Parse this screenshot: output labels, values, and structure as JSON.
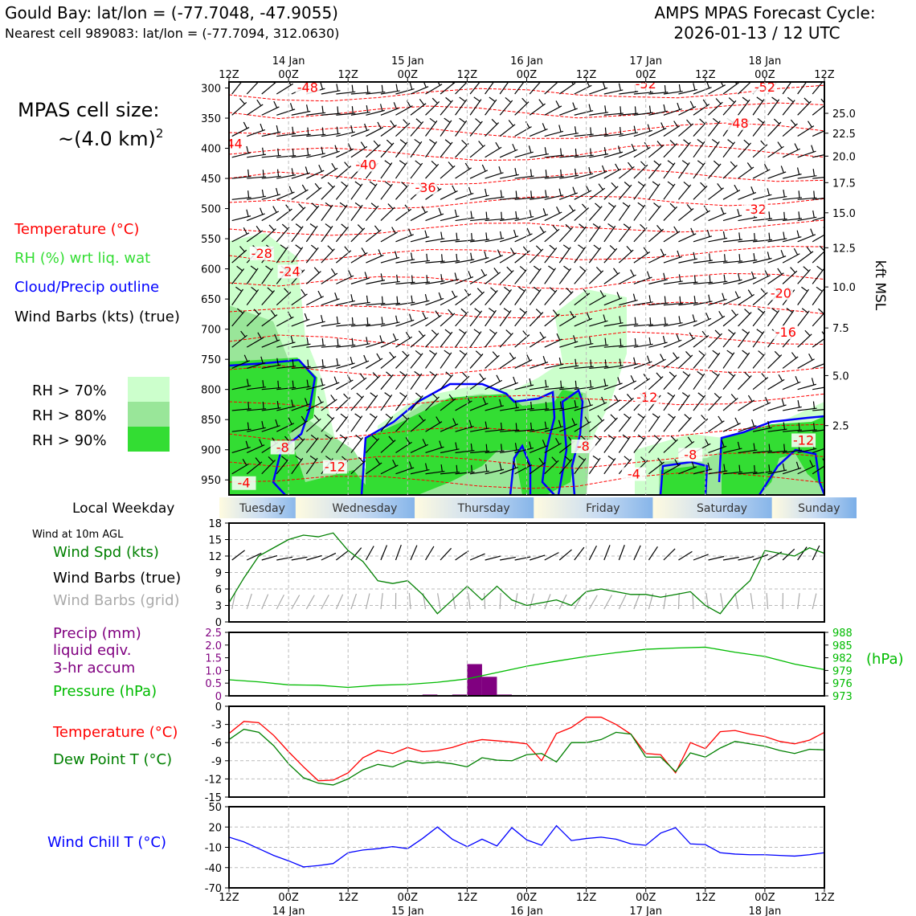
{
  "header": {
    "site_line": "Gould Bay: lat/lon = (-77.7048, -47.9055)",
    "cell_line": "Nearest cell 989083: lat/lon = (-77.7094, 312.0630)",
    "cycle_label": "AMPS MPAS Forecast Cycle:",
    "cycle_value": "2026-01-13 / 12 UTC"
  },
  "left_panel": {
    "cell_size_title": "MPAS cell size:",
    "cell_size_value": "~(4.0 km)",
    "cell_size_sup": "2",
    "legend": {
      "temperature": "Temperature (°C)",
      "rh": "RH (%) wrt liq. wat",
      "cloud": "Cloud/Precip outline",
      "barbs": "Wind Barbs (kts) (true)"
    },
    "rh_levels": [
      {
        "label": "RH > 70%",
        "color": "#ccffcc"
      },
      {
        "label": "RH > 80%",
        "color": "#99e699"
      },
      {
        "label": "RH > 90%",
        "color": "#33dd33"
      }
    ],
    "weekday_label": "Local Weekday",
    "wind_label": "Wind at 10m AGL",
    "wind_spd_label": "Wind Spd (kts)",
    "wind_true_label": "Wind Barbs (true)",
    "wind_grid_label": "Wind Barbs (grid)",
    "precip_label": [
      "Precip (mm)",
      "liquid eqiv.",
      "3-hr accum"
    ],
    "pressure_label": "Pressure (hPa)",
    "pressure_unit": "(hPa)",
    "temp_label": "Temperature (°C)",
    "dew_label": "Dew Point T (°C)",
    "chill_label": "Wind Chill T (°C)"
  },
  "colors": {
    "temperature": "#ff0000",
    "dewpoint": "#008000",
    "rh_legend": "#33cc33",
    "cloud": "#0000ff",
    "pressure": "#00bb00",
    "precip": "#800080",
    "windchill": "#0000ff",
    "wind_speed": "#008000",
    "grid_barbs": "#aaaaaa"
  },
  "chart_data": {
    "type": "line",
    "time_axis": {
      "tick_labels": [
        "12Z",
        "00Z",
        "12Z",
        "00Z",
        "12Z",
        "00Z",
        "12Z",
        "00Z",
        "12Z",
        "00Z",
        "12Z"
      ],
      "date_labels": [
        {
          "tick_index": 1,
          "label": "14 Jan"
        },
        {
          "tick_index": 3,
          "label": "15 Jan"
        },
        {
          "tick_index": 5,
          "label": "16 Jan"
        },
        {
          "tick_index": 7,
          "label": "17 Jan"
        },
        {
          "tick_index": 9,
          "label": "18 Jan"
        }
      ],
      "weekdays": [
        "Tuesday",
        "Wednesday",
        "Thursday",
        "Friday",
        "Saturday",
        "Sunday"
      ],
      "weekday_boundaries": [
        1.28,
        3.28,
        5.28,
        7.28,
        9.28
      ]
    },
    "cross_section": {
      "pressure_ticks": [
        300,
        350,
        400,
        450,
        500,
        550,
        600,
        650,
        700,
        750,
        800,
        850,
        900,
        950
      ],
      "height_ticks_kft": [
        "25.0",
        "22.5",
        "20.0",
        "17.5",
        "15.0",
        "12.5",
        "10.0",
        "7.5",
        "5.0",
        "2.5"
      ],
      "height_tick_pressures": [
        342,
        375,
        413,
        457,
        507,
        565,
        630,
        698,
        777,
        860
      ],
      "height_axis_label": "kft MSL",
      "temperature_contour_labels": [
        {
          "label": "-48",
          "t": 1.32,
          "p": 304
        },
        {
          "label": "-52",
          "t": 7.0,
          "p": 298
        },
        {
          "label": "-52",
          "t": 9.0,
          "p": 303
        },
        {
          "label": "-48",
          "t": 8.55,
          "p": 363
        },
        {
          "label": "-44",
          "t": 0.05,
          "p": 397
        },
        {
          "label": "-40",
          "t": 2.3,
          "p": 432
        },
        {
          "label": "-36",
          "t": 3.3,
          "p": 470
        },
        {
          "label": "-32",
          "t": 8.85,
          "p": 506
        },
        {
          "label": "-28",
          "t": 0.55,
          "p": 579
        },
        {
          "label": "-24",
          "t": 1.02,
          "p": 609
        },
        {
          "label": "-20",
          "t": 9.27,
          "p": 645
        },
        {
          "label": "-16",
          "t": 9.35,
          "p": 710
        },
        {
          "label": "-12",
          "t": 7.02,
          "p": 818
        },
        {
          "label": "-12",
          "t": 9.65,
          "p": 889
        },
        {
          "label": "-8",
          "t": 0.9,
          "p": 901
        },
        {
          "label": "-8",
          "t": 5.95,
          "p": 899
        },
        {
          "label": "-8",
          "t": 7.75,
          "p": 913
        },
        {
          "label": "-12",
          "t": 1.78,
          "p": 933
        },
        {
          "label": "-4",
          "t": 0.25,
          "p": 960
        },
        {
          "label": "-4",
          "t": 6.8,
          "p": 945
        }
      ]
    },
    "wind_speed": {
      "ylim": [
        0,
        18
      ],
      "yticks": [
        0,
        3,
        6,
        9,
        12,
        15,
        18
      ],
      "t": [
        0,
        0.25,
        0.5,
        0.75,
        1,
        1.25,
        1.5,
        1.75,
        2,
        2.25,
        2.5,
        2.75,
        3,
        3.25,
        3.5,
        3.75,
        4,
        4.25,
        4.5,
        4.75,
        5,
        5.25,
        5.5,
        5.75,
        6,
        6.25,
        6.5,
        6.75,
        7,
        7.25,
        7.5,
        7.75,
        8,
        8.25,
        8.5,
        8.75,
        9,
        9.25,
        9.5,
        9.75,
        10
      ],
      "speed": [
        3.5,
        8,
        12,
        13.5,
        15,
        15.8,
        15.5,
        16.2,
        13,
        11,
        7.5,
        7,
        7.5,
        5,
        1.5,
        4,
        6.5,
        4,
        6.5,
        4,
        3,
        3.5,
        4,
        3,
        5.5,
        6,
        5.5,
        5,
        5,
        4.5,
        5,
        5.5,
        3,
        1.5,
        5,
        7.5,
        13,
        12.5,
        12,
        13.5,
        12.5
      ]
    },
    "precip_pressure": {
      "precip_ylim": [
        0,
        2.5
      ],
      "precip_yticks": [
        "0",
        "0.5",
        "1.0",
        "1.5",
        "2.0",
        "2.5"
      ],
      "pressure_ylim": [
        973,
        988
      ],
      "pressure_yticks": [
        "973",
        "976",
        "979",
        "982",
        "985",
        "988"
      ],
      "precip_bars": [
        {
          "t": 3.375,
          "value": 0.05
        },
        {
          "t": 3.875,
          "value": 0.05
        },
        {
          "t": 4.125,
          "value": 1.25
        },
        {
          "t": 4.375,
          "value": 0.75
        },
        {
          "t": 4.625,
          "value": 0.05
        }
      ],
      "pressure_t": [
        0,
        0.5,
        1,
        1.5,
        2,
        2.5,
        3,
        3.5,
        4,
        4.5,
        5,
        5.5,
        6,
        6.5,
        7,
        7.5,
        8,
        8.5,
        9,
        9.5,
        10
      ],
      "pressure_values": [
        976.8,
        976.3,
        975.6,
        975.5,
        975,
        975.5,
        975.7,
        976.2,
        977,
        978.5,
        980,
        981.2,
        982.3,
        983.2,
        984,
        984.3,
        984.5,
        983.3,
        982.3,
        980.5,
        979.2
      ]
    },
    "temperature_dewpoint": {
      "ylim": [
        -15,
        0
      ],
      "yticks": [
        0,
        -3,
        -6,
        -9,
        -12,
        -15
      ],
      "t": [
        0,
        0.25,
        0.5,
        0.75,
        1,
        1.25,
        1.5,
        1.75,
        2,
        2.25,
        2.5,
        2.75,
        3,
        3.25,
        3.5,
        3.75,
        4,
        4.25,
        4.5,
        4.75,
        5,
        5.25,
        5.5,
        5.75,
        6,
        6.25,
        6.5,
        6.75,
        7,
        7.25,
        7.5,
        7.75,
        8,
        8.25,
        8.5,
        8.75,
        9,
        9.25,
        9.5,
        9.75,
        10
      ],
      "temperature": [
        -4.5,
        -2.5,
        -2.7,
        -4.8,
        -7.5,
        -10,
        -12.3,
        -12.2,
        -11,
        -8.5,
        -7.3,
        -7.8,
        -6.8,
        -7.5,
        -7.3,
        -6.8,
        -6,
        -5.5,
        -5.7,
        -5.9,
        -6.2,
        -9,
        -4.5,
        -3.5,
        -1.8,
        -1.8,
        -3,
        -4.6,
        -7.8,
        -8,
        -11,
        -6,
        -7,
        -4.2,
        -4,
        -4.6,
        -5,
        -5.8,
        -6.2,
        -5.6,
        -4.3
      ],
      "dewpoint": [
        -5.5,
        -3.8,
        -4.3,
        -6.5,
        -9.5,
        -11.8,
        -12.7,
        -13,
        -12,
        -10.5,
        -9.6,
        -10,
        -9,
        -9.4,
        -9.2,
        -9.5,
        -10,
        -8.5,
        -8.9,
        -9,
        -8,
        -7.8,
        -9.2,
        -6,
        -6,
        -5.5,
        -4.3,
        -4.6,
        -8.4,
        -8.4,
        -10.8,
        -7.7,
        -8.4,
        -6.9,
        -5.8,
        -6.2,
        -6.6,
        -7.3,
        -7.8,
        -7.1,
        -7.2
      ]
    },
    "wind_chill": {
      "ylim": [
        -70,
        50
      ],
      "yticks": [
        50,
        20,
        -10,
        -40,
        -70
      ],
      "t": [
        0,
        0.25,
        0.5,
        0.75,
        1,
        1.25,
        1.5,
        1.75,
        2,
        2.25,
        2.5,
        2.75,
        3,
        3.25,
        3.5,
        3.75,
        4,
        4.25,
        4.5,
        4.75,
        5,
        5.25,
        5.5,
        5.75,
        6,
        6.25,
        6.5,
        6.75,
        7,
        7.25,
        7.5,
        7.75,
        8,
        8.25,
        8.5,
        8.75,
        9,
        9.25,
        9.5,
        9.75,
        10
      ],
      "values": [
        5,
        -2,
        -12,
        -22,
        -30,
        -39,
        -37,
        -34,
        -18,
        -14,
        -12,
        -9,
        -12,
        3,
        20,
        2,
        -9,
        2,
        -8,
        19,
        1,
        -7,
        22,
        0,
        3,
        5,
        2,
        -5,
        -7,
        11,
        19,
        -5,
        -6,
        -18,
        -20,
        -21,
        -21,
        -22,
        -23,
        -21,
        -18
      ]
    }
  }
}
